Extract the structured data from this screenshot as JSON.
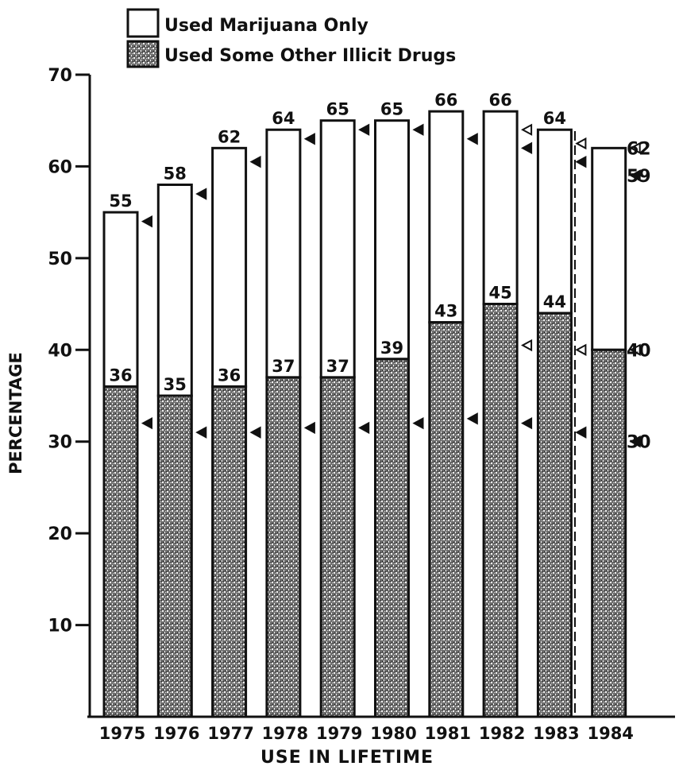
{
  "chart_data": {
    "type": "bar",
    "stacked": true,
    "title": "",
    "xlabel": "USE IN LIFETIME",
    "ylabel": "PERCENTAGE",
    "ylim": [
      0,
      70
    ],
    "yticks": [
      10,
      20,
      30,
      40,
      50,
      60,
      70
    ],
    "grid": false,
    "legend_position": "top-left",
    "categories": [
      "1975",
      "1976",
      "1977",
      "1978",
      "1979",
      "1980",
      "1981",
      "1982",
      "1983",
      "1984"
    ],
    "series": [
      {
        "name": "Used Some Other Illicit Drugs",
        "fill": "stippled",
        "values": [
          36,
          35,
          36,
          37,
          37,
          39,
          43,
          45,
          44,
          40
        ]
      },
      {
        "name": "Used Marijuana Only",
        "fill": "white",
        "totals": [
          55,
          58,
          62,
          64,
          65,
          65,
          66,
          66,
          64,
          62
        ]
      }
    ],
    "markers": {
      "filled_total": [
        54,
        57,
        60.5,
        63,
        64,
        64,
        63,
        62,
        60.5,
        59
      ],
      "filled_other": [
        32,
        31,
        31,
        31.5,
        31.5,
        32,
        32.5,
        32,
        31,
        30
      ],
      "open_total": [
        null,
        null,
        null,
        null,
        null,
        null,
        null,
        64,
        62.5,
        62
      ],
      "open_other": [
        null,
        null,
        null,
        null,
        null,
        null,
        null,
        40.5,
        40,
        40
      ]
    },
    "right_annotations": [
      "62",
      "59",
      "40",
      "30"
    ],
    "divider_before": "1984",
    "colors": {
      "ink": "#111111",
      "stipple_dark": "#2a2a2a",
      "stipple_light": "#ffffff"
    }
  }
}
